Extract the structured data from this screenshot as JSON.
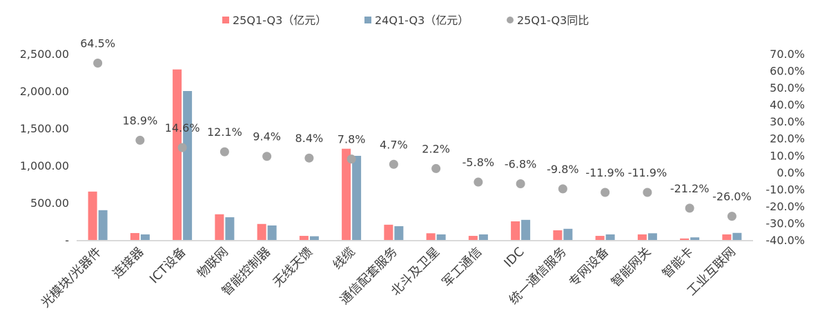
{
  "chart_data": {
    "type": "bar",
    "title": "",
    "colors": {
      "s1": "#FF7F7F",
      "s2": "#81A4BE",
      "s3": "#A6A6A6",
      "axis": "#D9D9D9"
    },
    "categories": [
      "光模块/光器件",
      "连接器",
      "ICT设备",
      "物联网",
      "智能控制器",
      "无线天馈",
      "线缆",
      "通信配套服务",
      "北斗及卫星",
      "军工通信",
      "IDC",
      "统一通信服务",
      "专网设备",
      "智能网关",
      "智能卡",
      "工业互联网"
    ],
    "series": [
      {
        "name": "25Q1-Q3（亿元）",
        "type": "bar",
        "axis": "left",
        "values": [
          650,
          93,
          2290,
          345,
          215,
          55,
          1225,
          205,
          90,
          55,
          250,
          130,
          55,
          75,
          20,
          75
        ]
      },
      {
        "name": "24Q1-Q3（亿元）",
        "type": "bar",
        "axis": "left",
        "values": [
          400,
          75,
          2000,
          305,
          195,
          50,
          1130,
          185,
          75,
          75,
          270,
          150,
          75,
          90,
          35,
          95
        ]
      },
      {
        "name": "25Q1-Q3同比",
        "type": "scatter",
        "axis": "right",
        "values": [
          64.5,
          18.9,
          14.6,
          12.1,
          9.4,
          8.4,
          7.8,
          4.7,
          2.2,
          -5.8,
          -6.8,
          -9.8,
          -11.9,
          -11.9,
          -21.2,
          -26.0
        ],
        "labels": [
          "64.5%",
          "18.9%",
          "14.6%",
          "12.1%",
          "9.4%",
          "8.4%",
          "7.8%",
          "4.7%",
          "2.2%",
          "-5.8%",
          "-6.8%",
          "-9.8%",
          "-11.9%",
          "-11.9%",
          "-21.2%",
          "-26.0%"
        ]
      }
    ],
    "left_axis": {
      "ylim": [
        0,
        2500
      ],
      "ticks": [
        "-",
        "500.00",
        "1,000.00",
        "1,500.00",
        "2,000.00",
        "2,500.00"
      ]
    },
    "right_axis": {
      "ylim": [
        -40,
        70
      ],
      "ticks": [
        "-40.0%",
        "-30.0%",
        "-20.0%",
        "-10.0%",
        "0.0%",
        "10.0%",
        "20.0%",
        "30.0%",
        "40.0%",
        "50.0%",
        "60.0%",
        "70.0%"
      ]
    },
    "legend": "top",
    "grid": false
  }
}
